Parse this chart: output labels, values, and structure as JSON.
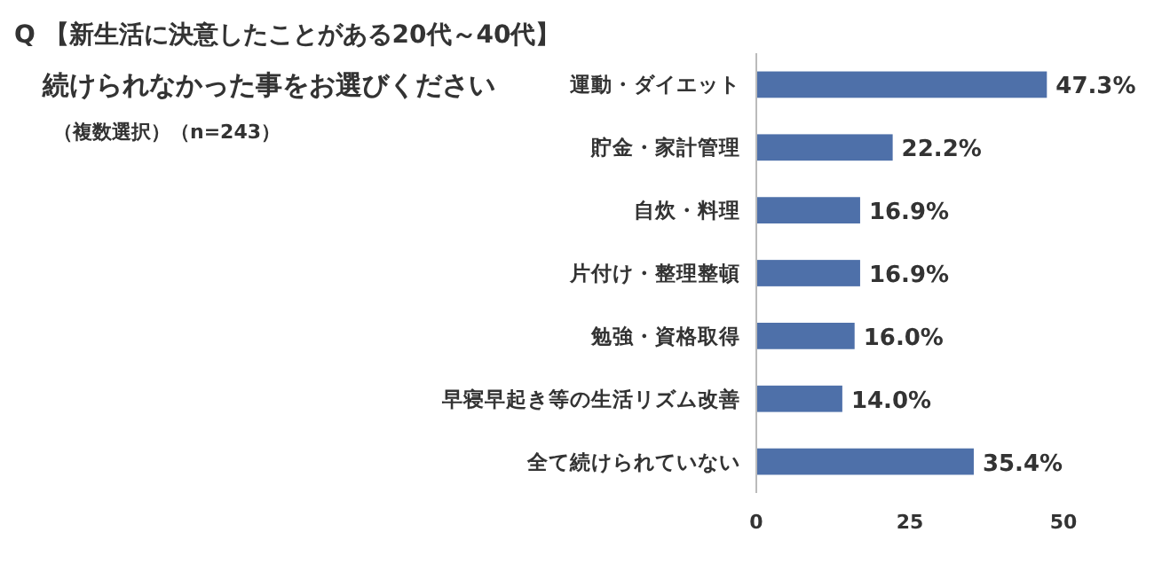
{
  "chart_data": {
    "type": "bar",
    "orientation": "horizontal",
    "title": "Q 【新生活に決意したことがある20代～40代】",
    "subtitle": "続けられなかった事をお選びください",
    "annotations": [
      "（複数選択）（n=243）"
    ],
    "categories": [
      "運動・ダイエット",
      "貯金・家計管理",
      "自炊・料理",
      "片付け・整理整頓",
      "勉強・資格取得",
      "早寝早起き等の生活リズム改善",
      "全て続けられていない"
    ],
    "values": [
      47.3,
      22.2,
      16.9,
      16.9,
      16.0,
      14.0,
      35.4
    ],
    "value_labels": [
      "47.3%",
      "22.2%",
      "16.9%",
      "16.9%",
      "16.0%",
      "14.0%",
      "35.4%"
    ],
    "color": "#4e70a9",
    "xlim": [
      0,
      50
    ],
    "xticks": [
      0,
      25,
      50
    ]
  }
}
